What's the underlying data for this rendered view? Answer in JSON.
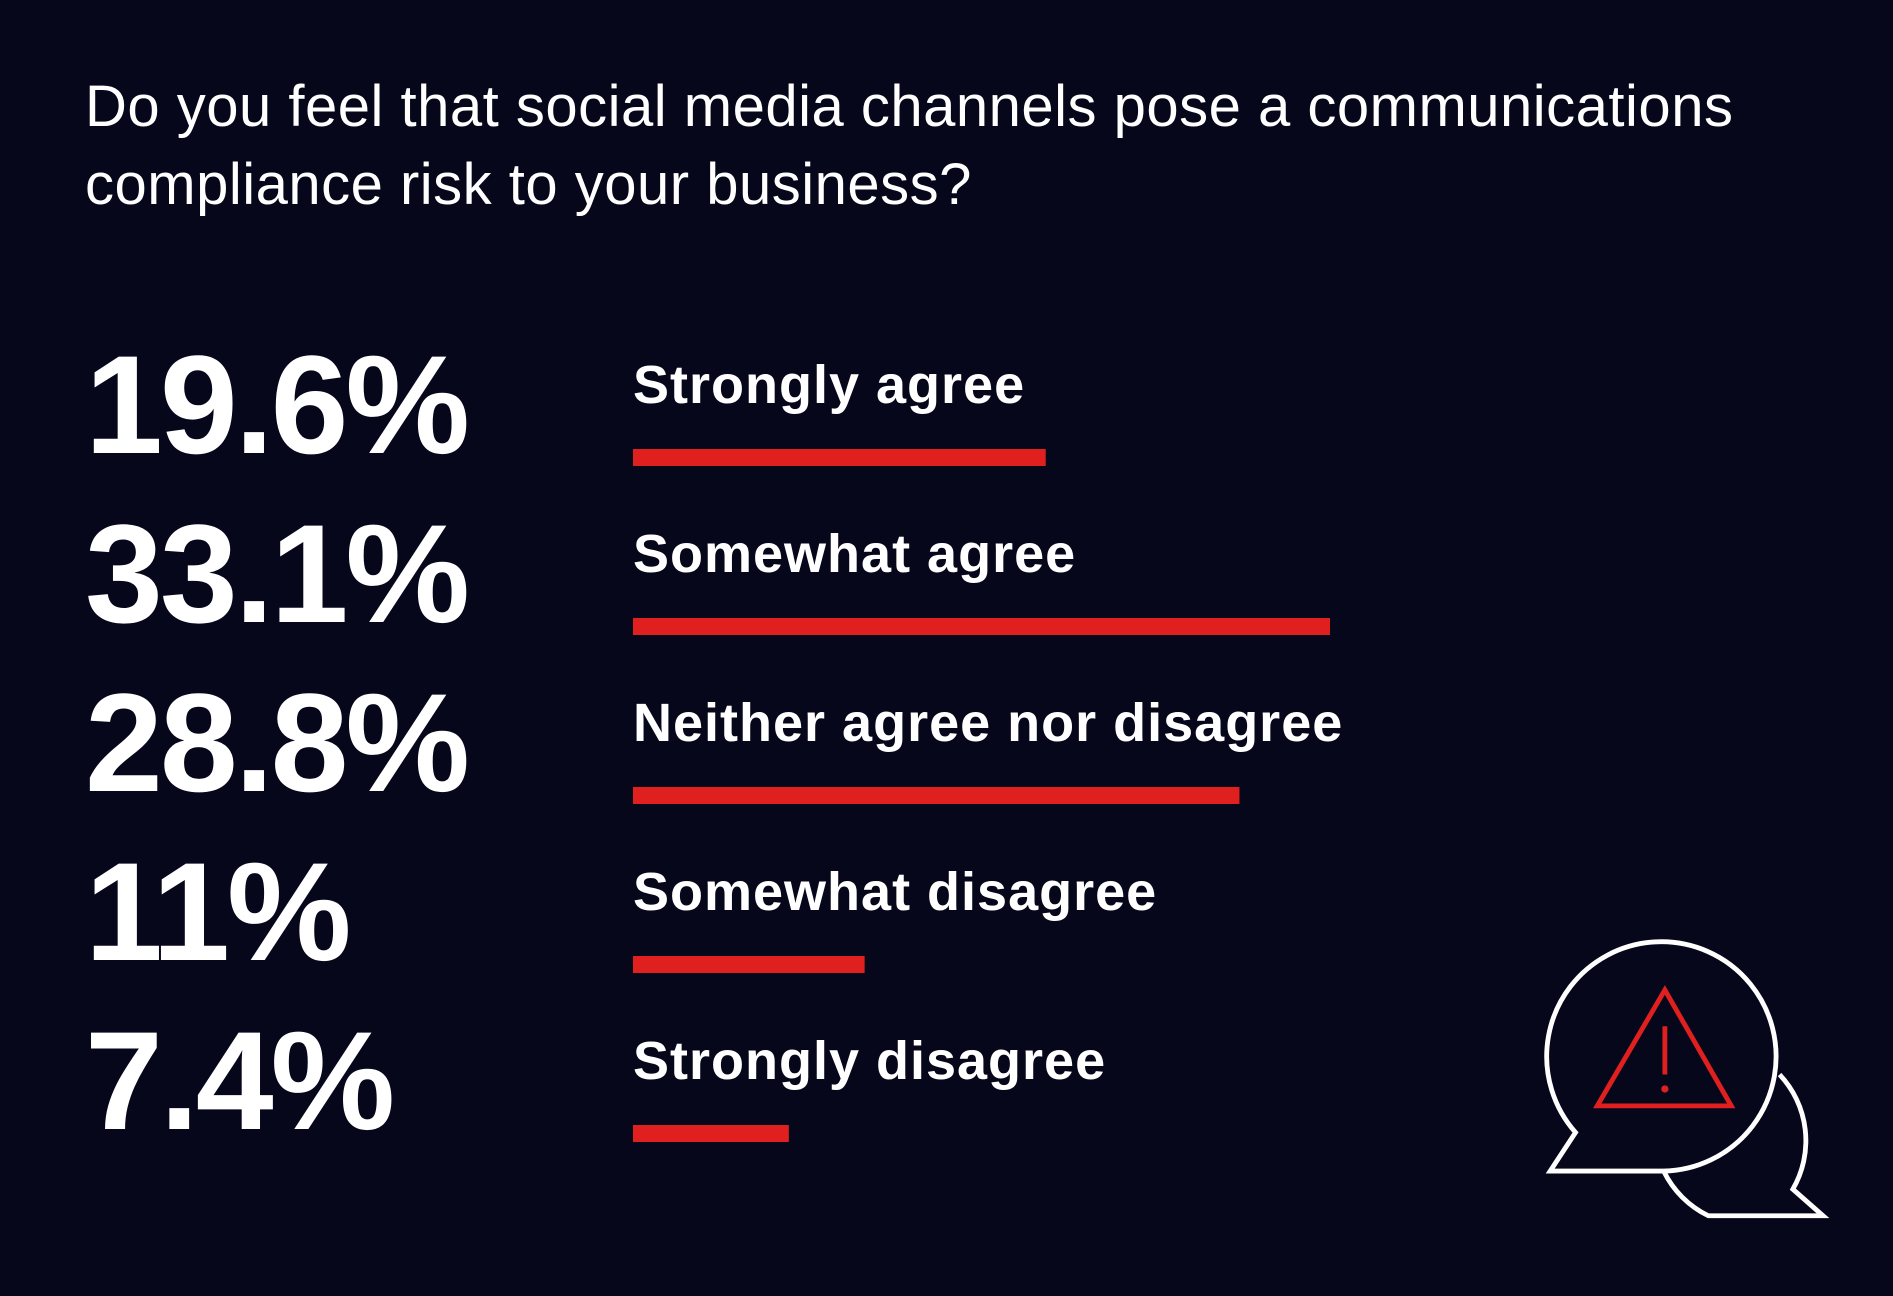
{
  "chart_data": {
    "type": "bar",
    "title": "Do you feel that social media channels pose a communications compliance risk to your business?",
    "categories": [
      "Strongly agree",
      "Somewhat agree",
      "Neither agree nor disagree",
      "Somewhat disagree",
      "Strongly disagree"
    ],
    "values": [
      19.6,
      33.1,
      28.8,
      11,
      7.4
    ],
    "value_labels": [
      "19.6%",
      "33.1%",
      "28.8%",
      "11%",
      "7.4%"
    ],
    "color": "#e0201f"
  }
}
